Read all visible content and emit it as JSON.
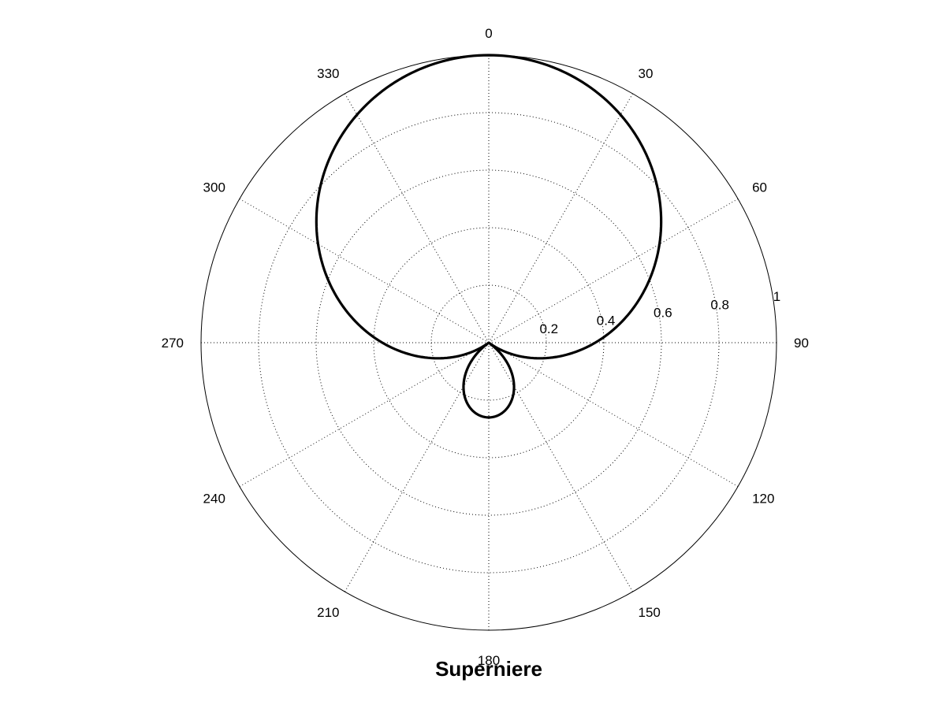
{
  "chart_data": {
    "type": "line",
    "projection": "polar",
    "title": "Supernierе",
    "angle_zero": "top",
    "angle_direction": "clockwise",
    "angle_ticks": [
      "0",
      "30",
      "60",
      "90",
      "120",
      "150",
      "180",
      "210",
      "240",
      "270",
      "300",
      "330"
    ],
    "radial_ticks": [
      "0.2",
      "0.4",
      "0.6",
      "0.8",
      "1"
    ],
    "rlim": [
      0,
      1
    ],
    "grid": true,
    "series": [
      {
        "pattern": "supercardioid",
        "formula": "|0.37 + 0.63*cos(theta)|",
        "max_value": 1.0,
        "null_angles_deg": [
          126,
          234
        ],
        "rear_lobe_value": 0.26,
        "line_color": "#000000"
      }
    ]
  }
}
